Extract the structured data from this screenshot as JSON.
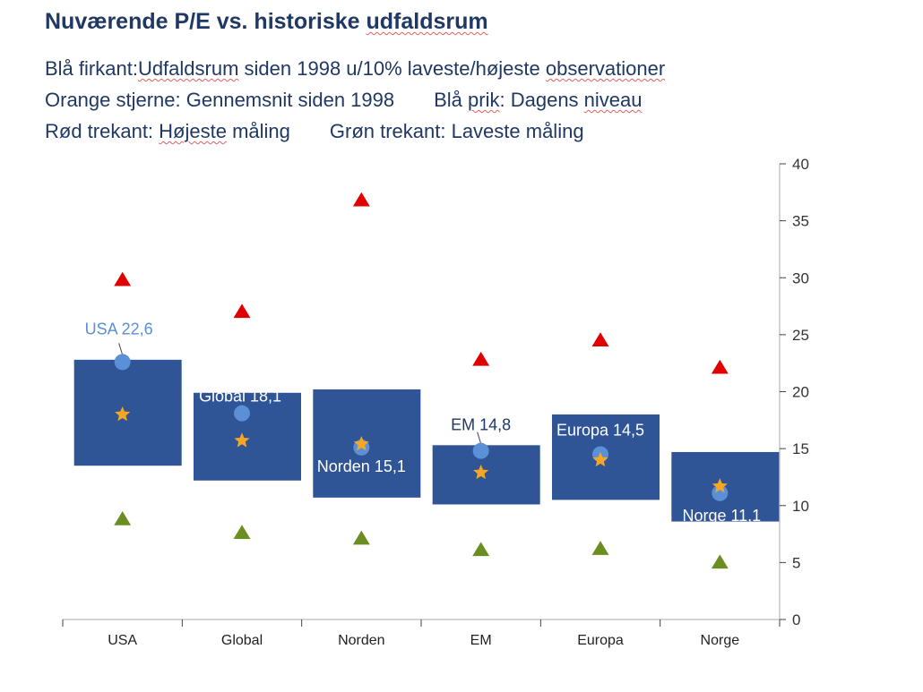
{
  "title_parts": [
    "Nuværende P/E vs. historiske ",
    "udfaldsrum"
  ],
  "legend": {
    "line1": [
      "Blå firkant: ",
      "Udfaldsrum",
      " siden 1998 u/10% laveste/højeste ",
      "observationer"
    ],
    "line2a": [
      "Orange stjerne: Gennemsnit siden 1998"
    ],
    "line2b": [
      "Blå ",
      "prik",
      ": Dagens ",
      "niveau"
    ],
    "line3a": [
      "Rød trekant: ",
      "Højeste",
      " måling"
    ],
    "line3b": [
      "Grøn trekant: Laveste måling"
    ]
  },
  "colors": {
    "range_box": "#2f5597",
    "current_dot": "#5b8fd6",
    "average_star": "#f5a623",
    "max_triangle": "#e00000",
    "min_triangle": "#6b8e23",
    "axis": "#aaaaaa"
  },
  "chart_data": {
    "type": "range-box",
    "categories": [
      "USA",
      "Global",
      "Norden",
      "EM",
      "Europa",
      "Norge"
    ],
    "ylim": [
      0,
      40
    ],
    "yticks": [
      0,
      5,
      10,
      15,
      20,
      25,
      30,
      35,
      40
    ],
    "y_axis_side": "right",
    "series": {
      "range_low": [
        13.5,
        12.2,
        10.7,
        10.1,
        10.5,
        8.6
      ],
      "range_high": [
        22.8,
        19.9,
        20.2,
        15.3,
        18.0,
        14.7
      ],
      "current": [
        22.6,
        18.1,
        15.1,
        14.8,
        14.5,
        11.1
      ],
      "average": [
        18.0,
        15.7,
        15.4,
        12.9,
        14.0,
        11.7
      ],
      "max": [
        29.8,
        27.0,
        36.8,
        22.8,
        24.5,
        22.1
      ],
      "min": [
        8.8,
        7.6,
        7.1,
        6.1,
        6.2,
        5.0
      ]
    },
    "data_labels": [
      "USA 22,6",
      "Global 18,1",
      "Norden 15,1",
      "EM 14,8",
      "Europa 14,5",
      "Norge 11,1"
    ]
  }
}
